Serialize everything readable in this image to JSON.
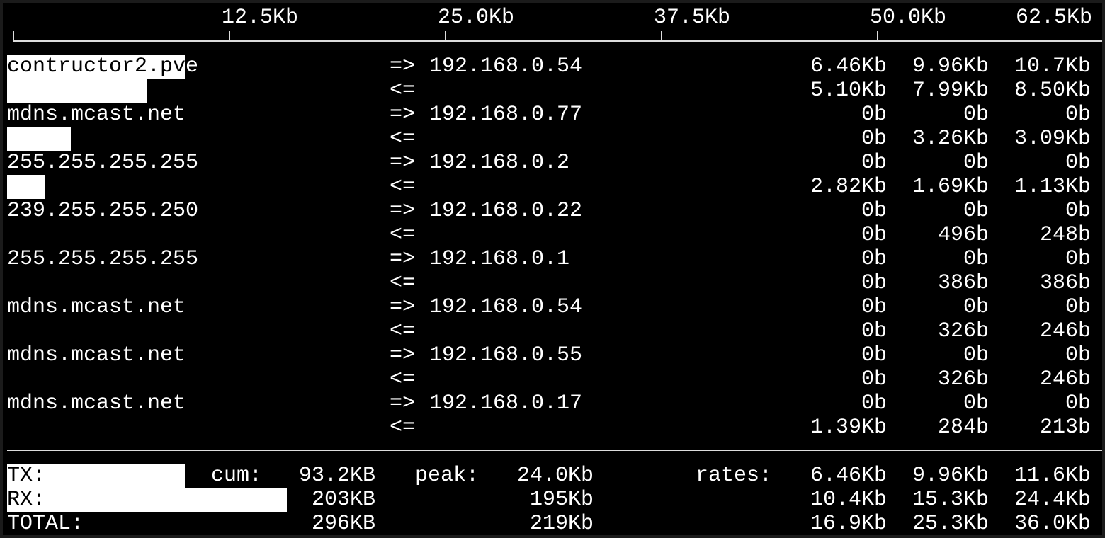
{
  "scale": {
    "unit": "Kb",
    "ticks": [
      {
        "value": 0,
        "label": ""
      },
      {
        "value": 12.5,
        "label": "12.5Kb"
      },
      {
        "value": 25.0,
        "label": "25.0Kb"
      },
      {
        "value": 37.5,
        "label": "37.5Kb"
      },
      {
        "value": 50.0,
        "label": "50.0Kb"
      },
      {
        "value": 62.5,
        "label": "62.5Kb"
      }
    ]
  },
  "connections": [
    {
      "host": "contructor2.pve",
      "peer": "192.168.0.54",
      "tx": [
        "6.46Kb",
        "9.96Kb",
        "10.7Kb"
      ],
      "rx": [
        "5.10Kb",
        "7.99Kb",
        "8.50Kb"
      ],
      "tx_bar_kb": 10.3,
      "rx_bar_kb": 8.1
    },
    {
      "host": "mdns.mcast.net",
      "peer": "192.168.0.77",
      "tx": [
        "0b",
        "0b",
        "0b"
      ],
      "rx": [
        "0b",
        "3.26Kb",
        "3.09Kb"
      ],
      "tx_bar_kb": 0,
      "rx_bar_kb": 3.7
    },
    {
      "host": "255.255.255.255",
      "peer": "192.168.0.2",
      "tx": [
        "0b",
        "0b",
        "0b"
      ],
      "rx": [
        "2.82Kb",
        "1.69Kb",
        "1.13Kb"
      ],
      "tx_bar_kb": 0,
      "rx_bar_kb": 2.2
    },
    {
      "host": "239.255.255.250",
      "peer": "192.168.0.22",
      "tx": [
        "0b",
        "0b",
        "0b"
      ],
      "rx": [
        "0b",
        "496b",
        "248b"
      ],
      "tx_bar_kb": 0,
      "rx_bar_kb": 0
    },
    {
      "host": "255.255.255.255",
      "peer": "192.168.0.1",
      "tx": [
        "0b",
        "0b",
        "0b"
      ],
      "rx": [
        "0b",
        "386b",
        "386b"
      ],
      "tx_bar_kb": 0,
      "rx_bar_kb": 0
    },
    {
      "host": "mdns.mcast.net",
      "peer": "192.168.0.54",
      "tx": [
        "0b",
        "0b",
        "0b"
      ],
      "rx": [
        "0b",
        "326b",
        "246b"
      ],
      "tx_bar_kb": 0,
      "rx_bar_kb": 0
    },
    {
      "host": "mdns.mcast.net",
      "peer": "192.168.0.55",
      "tx": [
        "0b",
        "0b",
        "0b"
      ],
      "rx": [
        "0b",
        "326b",
        "246b"
      ],
      "tx_bar_kb": 0,
      "rx_bar_kb": 0
    },
    {
      "host": "mdns.mcast.net",
      "peer": "192.168.0.17",
      "tx": [
        "0b",
        "0b",
        "0b"
      ],
      "rx": [
        "1.39Kb",
        "284b",
        "213b"
      ],
      "tx_bar_kb": 0,
      "rx_bar_kb": 0
    }
  ],
  "arrows": {
    "out": "=>",
    "in": "<="
  },
  "totals": {
    "cum_label": "cum:",
    "peak_label": "peak:",
    "rates_label": "rates:",
    "rows": [
      {
        "label": "TX:",
        "cum": "93.2KB",
        "peak": "24.0Kb",
        "rates": [
          "6.46Kb",
          "9.96Kb",
          "11.6Kb"
        ],
        "bar_kb": 10.3
      },
      {
        "label": "RX:",
        "cum": "203KB",
        "peak": "195Kb",
        "rates": [
          "10.4Kb",
          "15.3Kb",
          "24.4Kb"
        ],
        "bar_kb": 16.2
      },
      {
        "label": "TOTAL:",
        "cum": "296KB",
        "peak": "219Kb",
        "rates": [
          "16.9Kb",
          "25.3Kb",
          "36.0Kb"
        ],
        "bar_kb": 0
      }
    ]
  },
  "colors": {
    "background": "#000000",
    "foreground": "#ffffff"
  }
}
